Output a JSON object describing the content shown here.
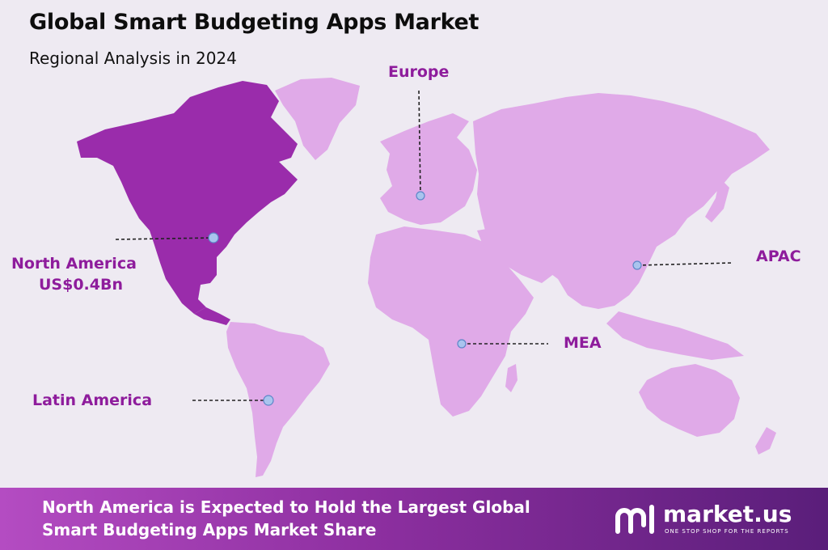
{
  "header": {
    "title": "Global Smart Budgeting Apps Market",
    "subtitle": "Regional Analysis in 2024"
  },
  "colors": {
    "highlight_region": "#9a2cab",
    "other_regions": "#e0aae8",
    "label_text": "#8e1c9c",
    "marker": "#a9c4ee"
  },
  "regions": [
    {
      "name": "North America",
      "value": "US$0.4Bn",
      "highlighted": true
    },
    {
      "name": "Europe",
      "highlighted": false
    },
    {
      "name": "APAC",
      "highlighted": false
    },
    {
      "name": "MEA",
      "highlighted": false
    },
    {
      "name": "Latin America",
      "highlighted": false
    }
  ],
  "footer": {
    "line1": "North America is Expected to Hold the Largest Global",
    "line2": "Smart Budgeting Apps Market Share"
  },
  "brand": {
    "name": "market.us",
    "tagline": "ONE STOP SHOP FOR THE REPORTS"
  }
}
